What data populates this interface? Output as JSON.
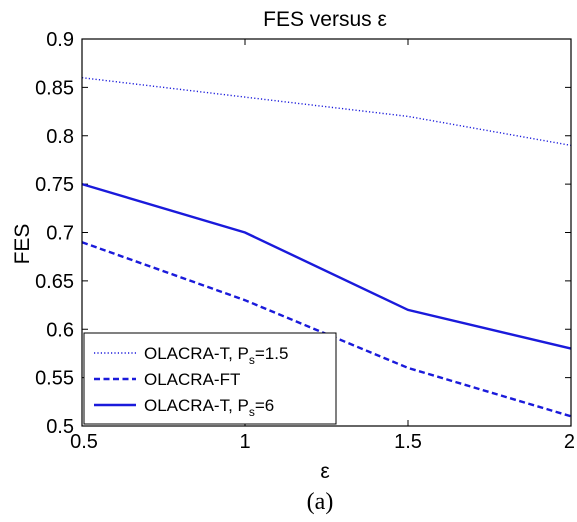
{
  "chart_data": {
    "type": "line",
    "title": "FES versus ε",
    "xlabel": "ε",
    "ylabel": "FES",
    "xlim": [
      0.5,
      2
    ],
    "ylim": [
      0.5,
      0.9
    ],
    "x_ticks": [
      "0.5",
      "1",
      "1.5",
      "2"
    ],
    "y_ticks": [
      "0.5",
      "0.55",
      "0.6",
      "0.65",
      "0.7",
      "0.75",
      "0.8",
      "0.85",
      "0.9"
    ],
    "grid": false,
    "legend_position": "bottom-left",
    "x": [
      0.5,
      1,
      1.5,
      2
    ],
    "series": [
      {
        "name": "OLACRA-T, P_s=1.5",
        "legend_parts": [
          "OLACRA-T, P",
          "s",
          "=1.5"
        ],
        "line_style": "dotted",
        "color": "#1a1adb",
        "values": [
          0.86,
          0.84,
          0.82,
          0.79
        ]
      },
      {
        "name": "OLACRA-FT",
        "legend_parts": [
          "OLACRA-FT",
          "",
          ""
        ],
        "line_style": "dashed",
        "color": "#1a1adb",
        "values": [
          0.69,
          0.63,
          0.56,
          0.51
        ]
      },
      {
        "name": "OLACRA-T, P_s=6",
        "legend_parts": [
          "OLACRA-T, P",
          "s",
          "=6"
        ],
        "line_style": "solid",
        "color": "#1a1adb",
        "values": [
          0.75,
          0.7,
          0.62,
          0.58
        ]
      }
    ],
    "caption": "(a)"
  }
}
